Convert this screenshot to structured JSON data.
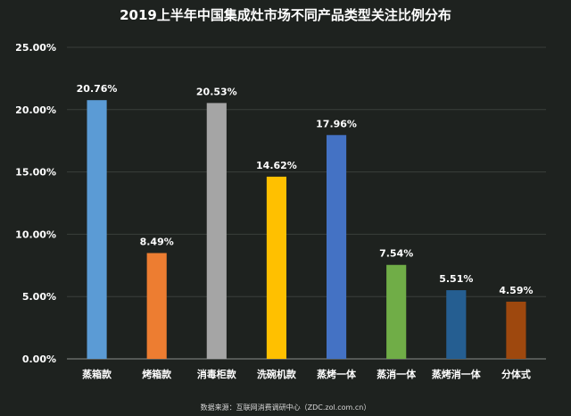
{
  "chart_data": {
    "type": "bar",
    "title": "2019上半年中国集成灶市场不同产品类型关注比例分布",
    "xlabel": "",
    "ylabel": "",
    "ylim": [
      0,
      25
    ],
    "ytick_values": [
      0,
      5,
      10,
      15,
      20,
      25
    ],
    "ytick_labels": [
      "0.00%",
      "5.00%",
      "10.00%",
      "15.00%",
      "20.00%",
      "25.00%"
    ],
    "grid": true,
    "categories": [
      "蒸箱款",
      "烤箱款",
      "消毒柜款",
      "洗碗机款",
      "蒸烤一体",
      "蒸消一体",
      "蒸烤消一体",
      "分体式"
    ],
    "values": [
      20.76,
      8.49,
      20.53,
      14.62,
      17.96,
      7.54,
      5.51,
      4.59
    ],
    "value_labels": [
      "20.76%",
      "8.49%",
      "20.53%",
      "14.62%",
      "17.96%",
      "7.54%",
      "5.51%",
      "4.59%"
    ],
    "colors": [
      "#5b9bd5",
      "#ed7d31",
      "#a5a5a5",
      "#ffc000",
      "#4472c4",
      "#70ad47",
      "#255e91",
      "#9e480e"
    ],
    "source": "数据来源：互联网消费调研中心（ZDC.zol.com.cn）"
  }
}
